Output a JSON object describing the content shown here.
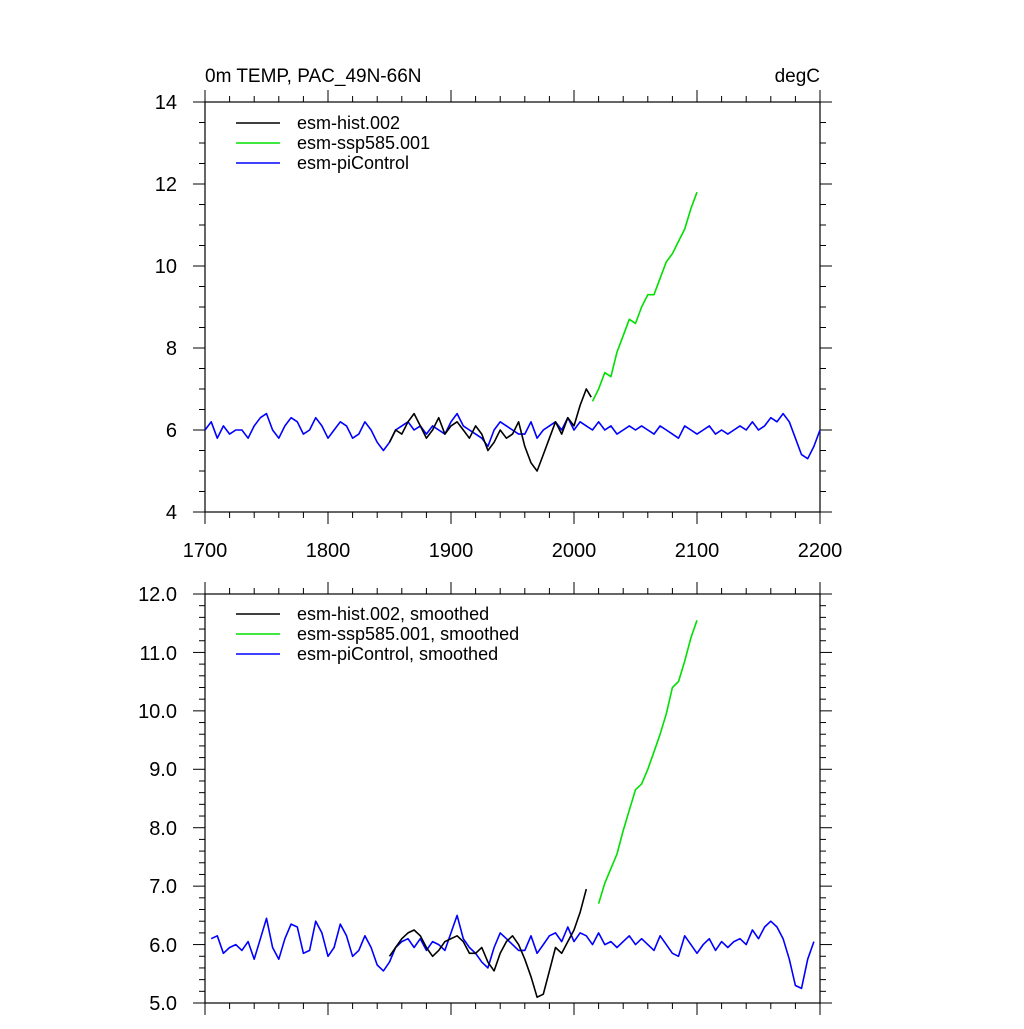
{
  "chart_data": [
    {
      "type": "line",
      "title": "0m TEMP, PAC_49N-66N",
      "units": "degC",
      "xlim": [
        1700,
        2200
      ],
      "ylim": [
        4,
        14
      ],
      "xticks": [
        "1700",
        "1800",
        "1900",
        "2000",
        "2100",
        "2200"
      ],
      "yticks": [
        "4",
        "6",
        "8",
        "10",
        "12",
        "14"
      ],
      "legend_position": "top-left",
      "series": [
        {
          "name": "esm-hist.002",
          "color": "#000000",
          "x": [
            1850,
            1855,
            1860,
            1865,
            1870,
            1875,
            1880,
            1885,
            1890,
            1895,
            1900,
            1905,
            1910,
            1915,
            1920,
            1925,
            1930,
            1935,
            1940,
            1945,
            1950,
            1955,
            1960,
            1965,
            1970,
            1975,
            1980,
            1985,
            1990,
            1995,
            2000,
            2005,
            2010,
            2014
          ],
          "values": [
            5.7,
            6.0,
            5.9,
            6.2,
            6.4,
            6.1,
            5.8,
            6.0,
            6.3,
            5.9,
            6.1,
            6.2,
            6.0,
            5.8,
            6.1,
            5.9,
            5.5,
            5.7,
            6.0,
            5.8,
            5.9,
            6.2,
            5.6,
            5.2,
            5.0,
            5.4,
            5.8,
            6.2,
            5.9,
            6.3,
            6.1,
            6.6,
            7.0,
            6.8
          ]
        },
        {
          "name": "esm-ssp585.001",
          "color": "#00e000",
          "x": [
            2015,
            2020,
            2025,
            2030,
            2035,
            2040,
            2045,
            2050,
            2055,
            2060,
            2065,
            2070,
            2075,
            2080,
            2085,
            2090,
            2095,
            2100
          ],
          "values": [
            6.7,
            7.0,
            7.4,
            7.3,
            7.9,
            8.3,
            8.7,
            8.6,
            9.0,
            9.3,
            9.3,
            9.7,
            10.1,
            10.3,
            10.6,
            10.9,
            11.4,
            11.8
          ]
        },
        {
          "name": "esm-piControl",
          "color": "#0000ff",
          "x": [
            1700,
            1705,
            1710,
            1715,
            1720,
            1725,
            1730,
            1735,
            1740,
            1745,
            1750,
            1755,
            1760,
            1765,
            1770,
            1775,
            1780,
            1785,
            1790,
            1795,
            1800,
            1805,
            1810,
            1815,
            1820,
            1825,
            1830,
            1835,
            1840,
            1845,
            1850,
            1855,
            1860,
            1865,
            1870,
            1875,
            1880,
            1885,
            1890,
            1895,
            1900,
            1905,
            1910,
            1915,
            1920,
            1925,
            1930,
            1935,
            1940,
            1945,
            1950,
            1955,
            1960,
            1965,
            1970,
            1975,
            1980,
            1985,
            1990,
            1995,
            2000,
            2005,
            2010,
            2015,
            2020,
            2025,
            2030,
            2035,
            2040,
            2045,
            2050,
            2055,
            2060,
            2065,
            2070,
            2075,
            2080,
            2085,
            2090,
            2095,
            2100,
            2105,
            2110,
            2115,
            2120,
            2125,
            2130,
            2135,
            2140,
            2145,
            2150,
            2155,
            2160,
            2165,
            2170,
            2175,
            2180,
            2185,
            2190,
            2195,
            2200
          ],
          "values": [
            6.0,
            6.2,
            5.8,
            6.1,
            5.9,
            6.0,
            6.0,
            5.8,
            6.1,
            6.3,
            6.4,
            6.0,
            5.8,
            6.1,
            6.3,
            6.2,
            5.9,
            6.0,
            6.3,
            6.1,
            5.8,
            6.0,
            6.2,
            6.1,
            5.8,
            5.9,
            6.2,
            6.0,
            5.7,
            5.5,
            5.7,
            6.0,
            6.1,
            6.2,
            6.0,
            6.1,
            5.9,
            6.1,
            6.0,
            5.9,
            6.2,
            6.4,
            6.1,
            6.0,
            5.9,
            5.8,
            5.6,
            6.0,
            6.2,
            6.1,
            6.0,
            5.9,
            5.9,
            6.2,
            5.8,
            6.0,
            6.1,
            6.2,
            6.0,
            6.3,
            6.0,
            6.2,
            6.1,
            6.0,
            6.2,
            6.0,
            6.1,
            5.9,
            6.0,
            6.1,
            6.0,
            6.1,
            6.0,
            5.9,
            6.1,
            6.0,
            5.9,
            5.8,
            6.1,
            6.0,
            5.9,
            6.0,
            6.1,
            5.9,
            6.0,
            5.9,
            6.0,
            6.1,
            6.0,
            6.2,
            6.0,
            6.1,
            6.3,
            6.2,
            6.4,
            6.2,
            5.8,
            5.4,
            5.3,
            5.6,
            6.0
          ]
        }
      ]
    },
    {
      "type": "line",
      "title": "",
      "ylim": [
        5.0,
        12.0
      ],
      "xlim": [
        1700,
        2200
      ],
      "yticks": [
        "5.0",
        "6.0",
        "7.0",
        "8.0",
        "9.0",
        "10.0",
        "11.0",
        "12.0"
      ],
      "legend_position": "top-left",
      "series": [
        {
          "name": "esm-hist.002, smoothed",
          "color": "#000000",
          "x": [
            1850,
            1855,
            1860,
            1865,
            1870,
            1875,
            1880,
            1885,
            1890,
            1895,
            1900,
            1905,
            1910,
            1915,
            1920,
            1925,
            1930,
            1935,
            1940,
            1945,
            1950,
            1955,
            1960,
            1965,
            1970,
            1975,
            1980,
            1985,
            1990,
            1995,
            2000,
            2005,
            2010
          ],
          "values": [
            5.8,
            5.95,
            6.1,
            6.2,
            6.25,
            6.15,
            5.95,
            5.8,
            5.9,
            6.05,
            6.1,
            6.15,
            6.05,
            5.85,
            5.85,
            5.95,
            5.7,
            5.55,
            5.85,
            6.05,
            6.15,
            6.0,
            5.75,
            5.45,
            5.1,
            5.15,
            5.55,
            5.95,
            5.85,
            6.05,
            6.25,
            6.55,
            6.95
          ]
        },
        {
          "name": "esm-ssp585.001, smoothed",
          "color": "#00e000",
          "x": [
            2020,
            2025,
            2030,
            2035,
            2040,
            2045,
            2050,
            2055,
            2060,
            2065,
            2070,
            2075,
            2080,
            2085,
            2090,
            2095,
            2100
          ],
          "values": [
            6.7,
            7.05,
            7.3,
            7.55,
            7.95,
            8.3,
            8.65,
            8.75,
            9.0,
            9.3,
            9.6,
            9.95,
            10.4,
            10.5,
            10.85,
            11.25,
            11.55
          ]
        },
        {
          "name": "esm-piControl, smoothed",
          "color": "#0000ff",
          "x": [
            1705,
            1710,
            1715,
            1720,
            1725,
            1730,
            1735,
            1740,
            1745,
            1750,
            1755,
            1760,
            1765,
            1770,
            1775,
            1780,
            1785,
            1790,
            1795,
            1800,
            1805,
            1810,
            1815,
            1820,
            1825,
            1830,
            1835,
            1840,
            1845,
            1850,
            1855,
            1860,
            1865,
            1870,
            1875,
            1880,
            1885,
            1890,
            1895,
            1900,
            1905,
            1910,
            1915,
            1920,
            1925,
            1930,
            1935,
            1940,
            1945,
            1950,
            1955,
            1960,
            1965,
            1970,
            1975,
            1980,
            1985,
            1990,
            1995,
            2000,
            2005,
            2010,
            2015,
            2020,
            2025,
            2030,
            2035,
            2040,
            2045,
            2050,
            2055,
            2060,
            2065,
            2070,
            2075,
            2080,
            2085,
            2090,
            2095,
            2100,
            2105,
            2110,
            2115,
            2120,
            2125,
            2130,
            2135,
            2140,
            2145,
            2150,
            2155,
            2160,
            2165,
            2170,
            2175,
            2180,
            2185,
            2190,
            2195
          ],
          "values": [
            6.1,
            6.15,
            5.85,
            5.95,
            6.0,
            5.9,
            6.05,
            5.75,
            6.1,
            6.45,
            5.95,
            5.75,
            6.1,
            6.35,
            6.3,
            5.85,
            5.9,
            6.4,
            6.2,
            5.8,
            5.95,
            6.35,
            6.15,
            5.8,
            5.9,
            6.15,
            5.95,
            5.65,
            5.55,
            5.7,
            5.95,
            6.05,
            6.1,
            5.95,
            6.1,
            5.9,
            6.05,
            6.0,
            5.9,
            6.2,
            6.5,
            6.1,
            5.95,
            5.85,
            5.7,
            5.6,
            5.95,
            6.2,
            6.1,
            6.0,
            5.9,
            5.9,
            6.15,
            5.85,
            6.0,
            6.15,
            6.2,
            6.05,
            6.3,
            6.05,
            6.2,
            6.15,
            6.0,
            6.2,
            6.0,
            6.05,
            5.95,
            6.05,
            6.15,
            6.0,
            6.1,
            6.0,
            5.9,
            6.15,
            6.0,
            5.85,
            5.8,
            6.15,
            6.0,
            5.85,
            6.0,
            6.1,
            5.9,
            6.05,
            5.95,
            6.05,
            6.1,
            6.0,
            6.25,
            6.1,
            6.3,
            6.4,
            6.3,
            6.1,
            5.75,
            5.3,
            5.25,
            5.75,
            6.05
          ]
        }
      ]
    }
  ]
}
